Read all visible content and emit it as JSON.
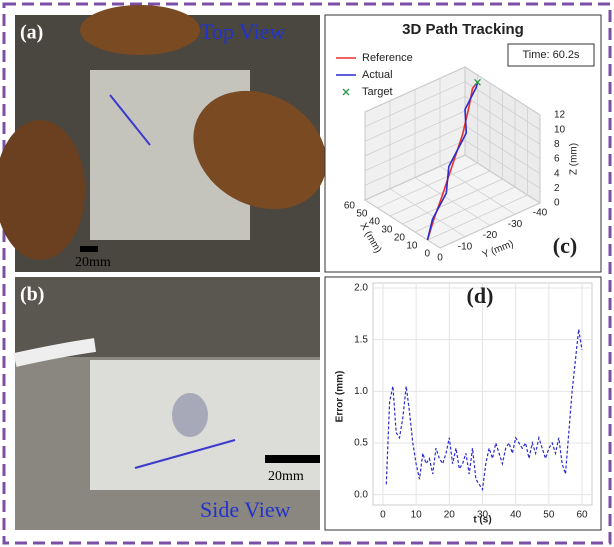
{
  "panels": {
    "a": {
      "label": "(a)",
      "view": "Top View",
      "scale": "20mm"
    },
    "b": {
      "label": "(b)",
      "view": "Side View",
      "scale": "20mm"
    }
  },
  "chart_data": [
    {
      "type": "line3d",
      "title": "3D Path Tracking",
      "panel_label": "(c)",
      "annotation": "Time: 60.2s",
      "xlabel": "X (mm)",
      "ylabel": "Y (mm)",
      "zlabel": "Z (mm)",
      "xlim": [
        0,
        60
      ],
      "ylim": [
        0,
        -40
      ],
      "zlim": [
        0,
        12
      ],
      "xticks": [
        0,
        10,
        20,
        30,
        40,
        50,
        60
      ],
      "yticks": [
        0,
        -10,
        -20,
        -30,
        -40
      ],
      "zticks": [
        0,
        2,
        4,
        6,
        8,
        10,
        12
      ],
      "series": [
        {
          "name": "Reference",
          "color": "#e8312f",
          "x": [
            10,
            15,
            22,
            30,
            38,
            45,
            50,
            50
          ],
          "y": [
            0,
            -5,
            -12,
            -20,
            -28,
            -34,
            -38,
            -40
          ],
          "z": [
            0,
            1.5,
            3,
            5,
            7,
            9,
            10.5,
            11
          ]
        },
        {
          "name": "Actual",
          "color": "#2b2bd0",
          "x": [
            10,
            16,
            21,
            31,
            37,
            46,
            49,
            50
          ],
          "y": [
            0,
            -5,
            -13,
            -19,
            -29,
            -33,
            -39,
            -40
          ],
          "z": [
            0,
            1.4,
            3.2,
            4.8,
            7.2,
            8.8,
            10.6,
            11
          ]
        }
      ],
      "target": {
        "name": "Target",
        "color": "#2a9a4a",
        "x": 50,
        "y": -40,
        "z": 11
      },
      "grid": true
    },
    {
      "type": "line",
      "panel_label": "(d)",
      "xlabel": "t (s)",
      "ylabel": "Error (mm)",
      "x": [
        1,
        2,
        3,
        4,
        5,
        6,
        7,
        8,
        9,
        10,
        11,
        12,
        13,
        14,
        15,
        16,
        17,
        18,
        19,
        20,
        21,
        22,
        23,
        24,
        25,
        26,
        27,
        28,
        29,
        30,
        31,
        32,
        33,
        34,
        35,
        36,
        37,
        38,
        39,
        40,
        41,
        42,
        43,
        44,
        45,
        46,
        47,
        48,
        49,
        50,
        51,
        52,
        53,
        54,
        55,
        56,
        57,
        58,
        59,
        60
      ],
      "series": [
        {
          "name": "Error",
          "color": "#2b2bd0",
          "values": [
            0.1,
            0.9,
            1.05,
            0.6,
            0.55,
            0.75,
            1.05,
            0.8,
            0.5,
            0.3,
            0.15,
            0.4,
            0.3,
            0.35,
            0.2,
            0.45,
            0.35,
            0.3,
            0.4,
            0.55,
            0.3,
            0.45,
            0.25,
            0.3,
            0.4,
            0.2,
            0.45,
            0.15,
            0.1,
            0.05,
            0.3,
            0.45,
            0.35,
            0.5,
            0.4,
            0.3,
            0.45,
            0.5,
            0.4,
            0.55,
            0.5,
            0.45,
            0.5,
            0.35,
            0.5,
            0.4,
            0.55,
            0.45,
            0.35,
            0.45,
            0.5,
            0.4,
            0.55,
            0.3,
            0.2,
            0.6,
            1.0,
            1.3,
            1.6,
            1.4
          ]
        }
      ],
      "xlim": [
        -3,
        63
      ],
      "ylim": [
        -0.1,
        2.0
      ],
      "xticks": [
        0,
        10,
        20,
        30,
        40,
        50,
        60
      ],
      "yticks": [
        {
          "value": 0,
          "label": "0.0"
        },
        0.5,
        {
          "value": 1,
          "label": "1.0"
        },
        1.5,
        {
          "value": 2,
          "label": "2.0"
        }
      ],
      "grid": true
    }
  ]
}
